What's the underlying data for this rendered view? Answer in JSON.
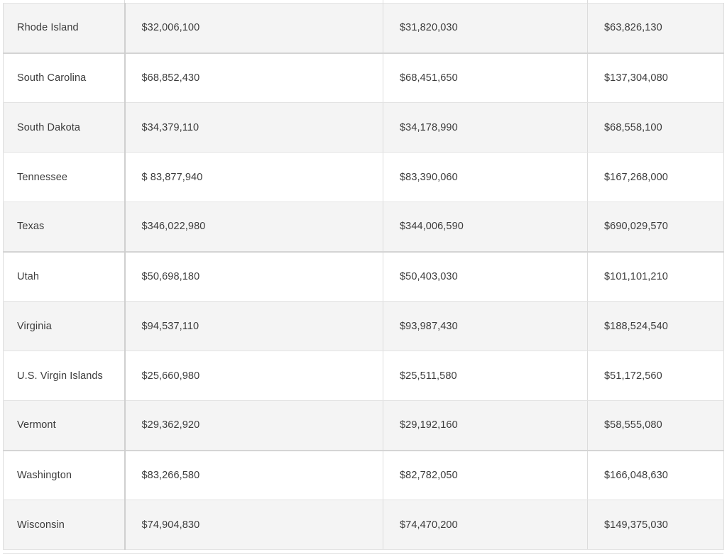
{
  "table": {
    "rows": [
      {
        "state": "Rhode Island",
        "v1": "$32,006,100",
        "v2": "$31,820,030",
        "v3": "$63,826,130"
      },
      {
        "state": "South Carolina",
        "v1": "$68,852,430",
        "v2": "$68,451,650",
        "v3": "$137,304,080"
      },
      {
        "state": "South Dakota",
        "v1": "$34,379,110",
        "v2": "$34,178,990",
        "v3": "$68,558,100"
      },
      {
        "state": "Tennessee",
        "v1": "$ 83,877,940",
        "v2": "$83,390,060",
        "v3": "$167,268,000"
      },
      {
        "state": "Texas",
        "v1": "$346,022,980",
        "v2": "$344,006,590",
        "v3": "$690,029,570"
      },
      {
        "state": "Utah",
        "v1": "$50,698,180",
        "v2": "$50,403,030",
        "v3": "$101,101,210"
      },
      {
        "state": "Virginia",
        "v1": "$94,537,110",
        "v2": "$93,987,430",
        "v3": "$188,524,540"
      },
      {
        "state": "U.S. Virgin Islands",
        "v1": "$25,660,980",
        "v2": "$25,511,580",
        "v3": "$51,172,560"
      },
      {
        "state": "Vermont",
        "v1": "$29,362,920",
        "v2": "$29,192,160",
        "v3": "$58,555,080"
      },
      {
        "state": "Washington",
        "v1": "$83,266,580",
        "v2": "$82,782,050",
        "v3": "$166,048,630"
      },
      {
        "state": "Wisconsin",
        "v1": "$74,904,830",
        "v2": "$74,470,200",
        "v3": "$149,375,030"
      }
    ]
  }
}
